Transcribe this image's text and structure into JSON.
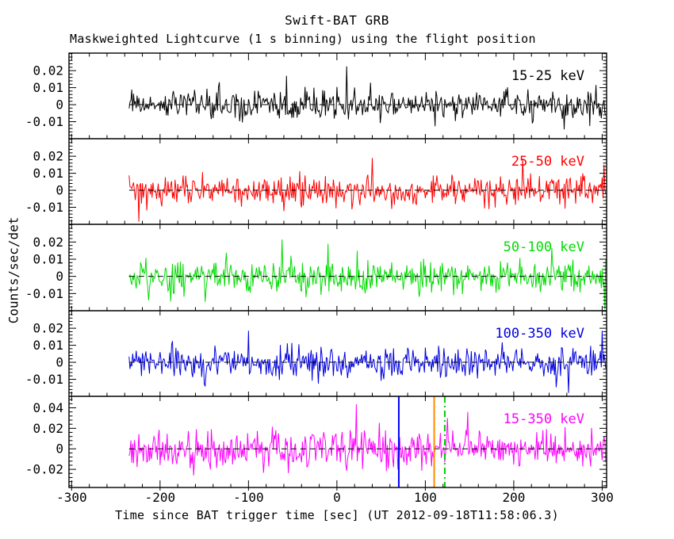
{
  "page": {
    "title": "Swift-BAT GRB",
    "subtitle": "Maskweighted Lightcurve (1 s binning) using the flight position",
    "xlabel": "Time since BAT trigger time [sec] (UT 2012-09-18T11:58:06.3)",
    "ylabel": "Counts/sec/det"
  },
  "chart_data": {
    "type": "line",
    "title": "Swift-BAT GRB",
    "subtitle": "Maskweighted Lightcurve (1 s binning) using the flight position",
    "xlabel": "Time since BAT trigger time [sec] (UT 2012-09-18T11:58:06.3)",
    "ylabel": "Counts/sec/det",
    "grid": false,
    "x_axis": {
      "range": [
        -303,
        305
      ],
      "major_ticks": [
        -300,
        -200,
        -100,
        0,
        100,
        200,
        300
      ],
      "minor_step": 20,
      "data_start": -235,
      "data_end": 304,
      "bin_seconds": 1
    },
    "panels": [
      {
        "band": "15-25 keV",
        "legend": "15-25 keV",
        "color": "#000000",
        "y_range": [
          -0.02,
          0.0303
        ],
        "y_ticks": [
          -0.01,
          0,
          0.01,
          0.02
        ],
        "y_tick_labels": [
          "-0.01",
          "0",
          "0.01",
          "0.02"
        ],
        "y_minor_step": 0.002,
        "mean": 0,
        "noise_sigma": 0.0042,
        "seed": 101,
        "spikes": [
          [
            11,
            0.0225
          ],
          [
            -57,
            0.017
          ],
          [
            257,
            -0.0145
          ]
        ]
      },
      {
        "band": "25-50 keV",
        "legend": "25-50 keV",
        "color": "#ff0000",
        "y_range": [
          -0.02,
          0.0303
        ],
        "y_ticks": [
          -0.01,
          0,
          0.01,
          0.02
        ],
        "y_tick_labels": [
          "-0.01",
          "0",
          "0.01",
          "0.02"
        ],
        "y_minor_step": 0.002,
        "mean": 0,
        "noise_sigma": 0.0046,
        "seed": 102,
        "spikes": [
          [
            -224,
            -0.0185
          ],
          [
            40,
            0.019
          ],
          [
            210,
            0.0185
          ]
        ]
      },
      {
        "band": "50-100 keV",
        "legend": "50-100 keV",
        "color": "#00dd00",
        "y_range": [
          -0.02,
          0.0303
        ],
        "y_ticks": [
          -0.01,
          0,
          0.01,
          0.02
        ],
        "y_tick_labels": [
          "-0.01",
          "0",
          "0.01",
          "0.02"
        ],
        "y_minor_step": 0.002,
        "mean": 0,
        "noise_sigma": 0.0046,
        "seed": 103,
        "spikes": [
          [
            -62,
            0.0215
          ],
          [
            -10,
            0.019
          ],
          [
            303,
            -0.019
          ]
        ]
      },
      {
        "band": "100-350 keV",
        "legend": "100-350 keV",
        "color": "#0000e0",
        "y_range": [
          -0.02,
          0.0303
        ],
        "y_ticks": [
          -0.01,
          0,
          0.01,
          0.02
        ],
        "y_tick_labels": [
          "-0.01",
          "0",
          "0.01",
          "0.02"
        ],
        "y_minor_step": 0.002,
        "mean": 0,
        "noise_sigma": 0.0044,
        "seed": 104,
        "spikes": [
          [
            -100,
            0.0185
          ],
          [
            262,
            -0.018
          ],
          [
            300,
            0.0185
          ]
        ]
      },
      {
        "band": "15-350 keV",
        "legend": "15-350 keV",
        "color": "#ff00ff",
        "y_range": [
          -0.0377,
          0.0512
        ],
        "y_ticks": [
          -0.02,
          0,
          0.02,
          0.04
        ],
        "y_tick_labels": [
          "-0.02",
          "0",
          "0.02",
          "0.04"
        ],
        "y_minor_step": 0.004,
        "mean": 0,
        "noise_sigma": 0.0088,
        "seed": 105,
        "spikes": [
          [
            22,
            0.0435
          ],
          [
            148,
            0.036
          ],
          [
            125,
            0.03
          ],
          [
            -162,
            -0.026
          ]
        ]
      }
    ],
    "zero_line": {
      "value": 0,
      "color": "#000000",
      "style": "dashed"
    },
    "event_lines": [
      {
        "t": 70,
        "color": "#0000ff",
        "style": "solid",
        "panel": "15-350 keV"
      },
      {
        "t": 110,
        "color": "#ff8c00",
        "style": "solid",
        "panel": "15-350 keV"
      },
      {
        "t": 122,
        "color": "#00cc00",
        "style": "dash-dot",
        "panel": "15-350 keV"
      }
    ]
  }
}
